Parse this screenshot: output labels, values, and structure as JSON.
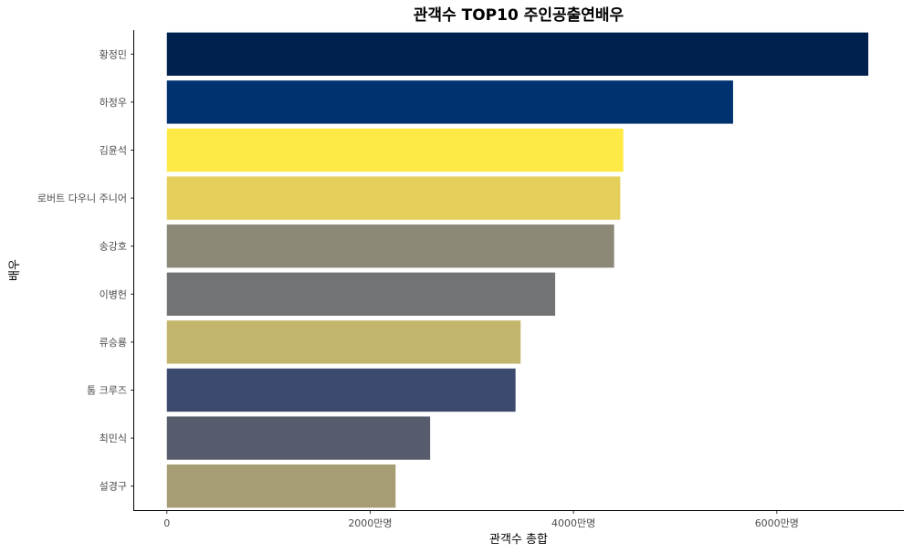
{
  "chart_data": {
    "type": "bar",
    "orientation": "horizontal",
    "title": "관객수 TOP10 주인공출연배우",
    "xlabel": "관객수 총합",
    "ylabel": "배우",
    "categories": [
      "황정민",
      "하정우",
      "김윤석",
      "로버트 다우니 주니어",
      "송강호",
      "이병헌",
      "류승룡",
      "톰 크루즈",
      "최민식",
      "설경구"
    ],
    "values": [
      69000000,
      55700000,
      44900000,
      44600000,
      44000000,
      38200000,
      34800000,
      34300000,
      25900000,
      22500000
    ],
    "colors": [
      "#00204d",
      "#00326f",
      "#ffe945",
      "#e4cf5b",
      "#8b8878",
      "#727374",
      "#c4b56c",
      "#3c4a6e",
      "#575c6d",
      "#a69d75"
    ],
    "xlim": [
      -3300000,
      72500000
    ],
    "xticks": [
      0,
      20000000,
      40000000,
      60000000
    ],
    "xtick_labels": [
      "0",
      "2000만명",
      "4000만명",
      "6000만명"
    ],
    "legend": "none",
    "grid": false
  }
}
